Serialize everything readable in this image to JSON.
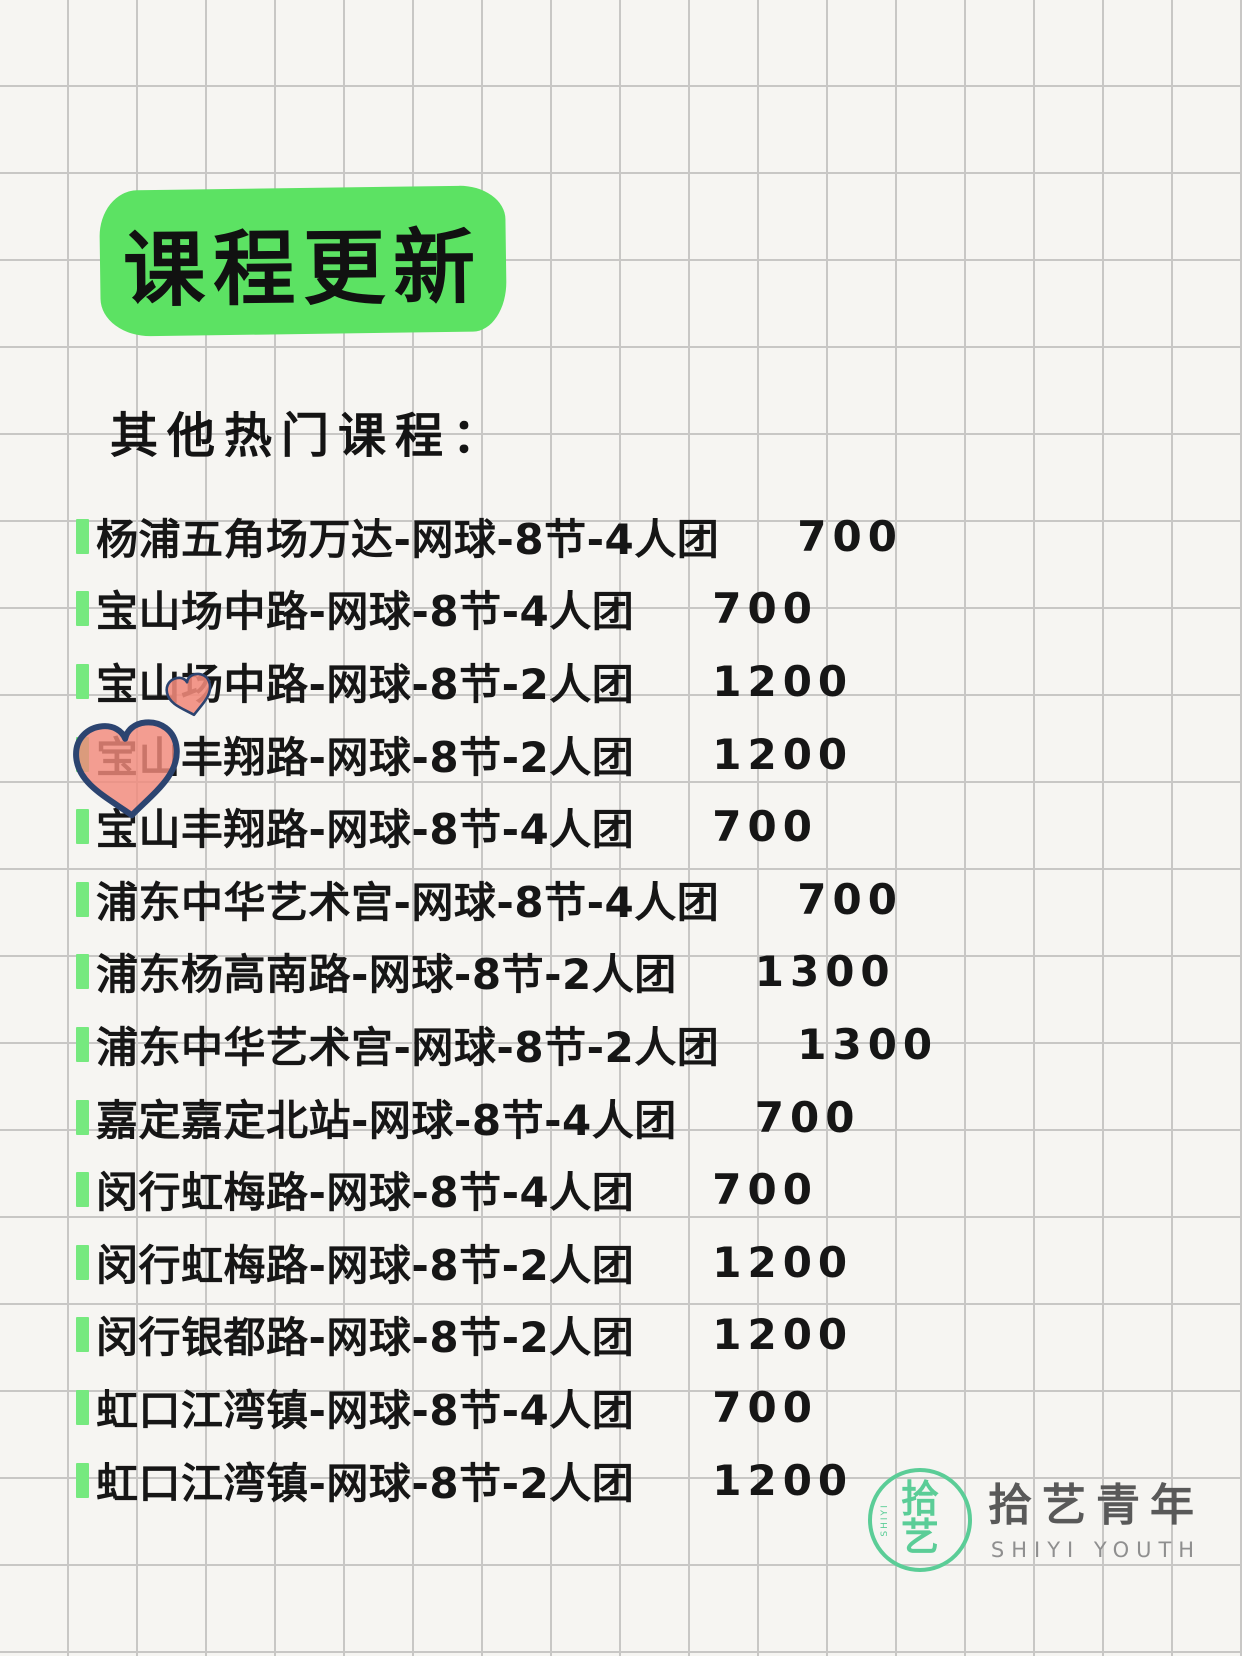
{
  "title": "课程更新",
  "subtitle": "其他热门课程：",
  "courses": [
    {
      "name": "杨浦五角场万达-网球-8节-4人团",
      "price": "700"
    },
    {
      "name": "宝山场中路-网球-8节-4人团",
      "price": "700"
    },
    {
      "name": "宝山场中路-网球-8节-2人团",
      "price": "1200"
    },
    {
      "name": "宝山丰翔路-网球-8节-2人团",
      "price": "1200"
    },
    {
      "name": "宝山丰翔路-网球-8节-4人团",
      "price": "700"
    },
    {
      "name": "浦东中华艺术宫-网球-8节-4人团",
      "price": "700"
    },
    {
      "name": "浦东杨高南路-网球-8节-2人团",
      "price": "1300"
    },
    {
      "name": "浦东中华艺术宫-网球-8节-2人团",
      "price": "1300"
    },
    {
      "name": "嘉定嘉定北站-网球-8节-4人团",
      "price": "700"
    },
    {
      "name": "闵行虹梅路-网球-8节-4人团",
      "price": "700"
    },
    {
      "name": "闵行虹梅路-网球-8节-2人团",
      "price": "1200"
    },
    {
      "name": "闵行银都路-网球-8节-2人团",
      "price": "1200"
    },
    {
      "name": "虹口江湾镇-网球-8节-4人团",
      "price": "700"
    },
    {
      "name": "虹口江湾镇-网球-8节-2人团",
      "price": "1200"
    }
  ],
  "logo": {
    "char_top": "拾",
    "char_bottom": "艺",
    "vertical_text": "SHIYI",
    "name_cn": "拾艺青年",
    "name_en": "SHIYI YOUTH"
  },
  "colors": {
    "highlight_green": "#5ce263",
    "bullet_green": "#76e97f",
    "heart_fill": "#f18a7b",
    "heart_outline": "#2c4470",
    "logo_teal": "#5bcd97",
    "text_black": "#161616",
    "grid_line": "#c8c7c5",
    "paper": "#f6f5f2"
  }
}
